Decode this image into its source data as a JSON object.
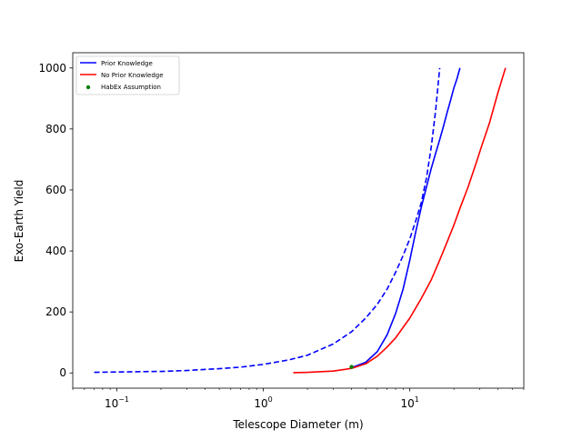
{
  "chart_data": {
    "type": "line",
    "title": "",
    "xlabel": "Telescope Diameter (m)",
    "ylabel": "Exo-Earth Yield",
    "xscale": "log",
    "xlim": [
      0.05,
      60
    ],
    "ylim": [
      -50,
      1050
    ],
    "grid": false,
    "legend_position": "top-left",
    "x_ticks": [
      {
        "value": 0.1,
        "base": "10",
        "exp": "−1"
      },
      {
        "value": 1,
        "base": "10",
        "exp": "0"
      },
      {
        "value": 10,
        "base": "10",
        "exp": "1"
      }
    ],
    "y_ticks": [
      0,
      200,
      400,
      600,
      800,
      1000
    ],
    "legend": [
      {
        "label": "Prior Knowledge",
        "color": "#0000ff",
        "marker": "line"
      },
      {
        "label": "No Prior Knowledge",
        "color": "#ff0000",
        "marker": "line"
      },
      {
        "label": "HabEx Assumption",
        "color": "#008000",
        "marker": "dot"
      }
    ],
    "series": [
      {
        "color": "#0000ff",
        "style": "dashed",
        "x": [
          0.07,
          0.1,
          0.2,
          0.3,
          0.5,
          0.7,
          1.0,
          1.5,
          2.0,
          3.0,
          4.0,
          5.0,
          6.0,
          7.0,
          8.0,
          9.0,
          10.0,
          11.0,
          12.0,
          13.0,
          14.0,
          15.0,
          16.0
        ],
        "y": [
          2,
          3,
          5,
          8,
          14,
          19,
          28,
          43,
          58,
          95,
          135,
          180,
          225,
          275,
          330,
          385,
          440,
          500,
          560,
          640,
          740,
          860,
          1000
        ]
      },
      {
        "color": "#0000ff",
        "style": "solid",
        "x": [
          4.0,
          5.0,
          6.0,
          7.0,
          8.0,
          9.0,
          10.0,
          11.0,
          12.0,
          13.0,
          14.0,
          15.0,
          16.0,
          17.0,
          18.0,
          19.0,
          20.0,
          21.0,
          22.0
        ],
        "y": [
          17,
          35,
          70,
          125,
          195,
          275,
          370,
          465,
          545,
          610,
          670,
          720,
          765,
          810,
          855,
          895,
          935,
          965,
          1000
        ]
      },
      {
        "color": "#ff0000",
        "style": "solid",
        "x": [
          1.6,
          2.0,
          3.0,
          4.0,
          5.0,
          6.0,
          7.0,
          8.0,
          10.0,
          12.0,
          14.0,
          16.0,
          18.0,
          20.0,
          22.0,
          25.0,
          28.0,
          31.0,
          35.0,
          40.0,
          45.0
        ],
        "y": [
          1,
          2,
          6,
          15,
          30,
          55,
          85,
          115,
          180,
          245,
          305,
          370,
          430,
          485,
          540,
          610,
          680,
          745,
          820,
          920,
          1000
        ]
      }
    ],
    "points": [
      {
        "name": "HabEx Assumption",
        "x": 4.0,
        "y": 20,
        "color": "#008000"
      }
    ]
  }
}
